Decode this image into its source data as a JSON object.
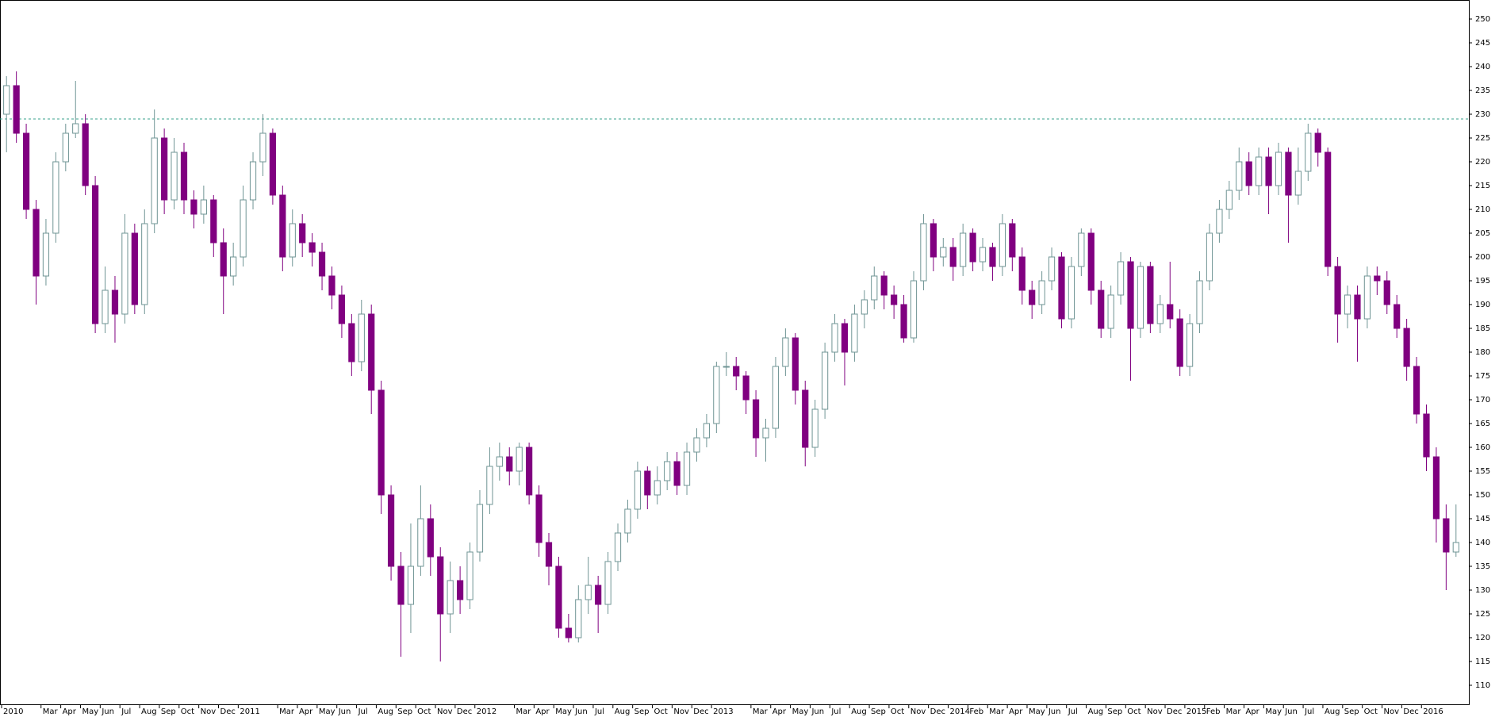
{
  "chart_data": {
    "type": "candlestick",
    "categories": [
      "2010",
      null,
      null,
      null,
      "Mar",
      null,
      "Apr",
      null,
      "May",
      null,
      "Jun",
      null,
      "Jul",
      null,
      "Aug",
      null,
      "Sep",
      null,
      "Oct",
      null,
      "Nov",
      null,
      "Dec",
      null,
      "2011",
      null,
      null,
      null,
      "Mar",
      null,
      "Apr",
      null,
      "May",
      null,
      "Jun",
      null,
      "Jul",
      null,
      "Aug",
      null,
      "Sep",
      null,
      "Oct",
      null,
      "Nov",
      null,
      "Dec",
      null,
      "2012",
      null,
      null,
      null,
      "Mar",
      null,
      "Apr",
      null,
      "May",
      null,
      "Jun",
      null,
      "Jul",
      null,
      "Aug",
      null,
      "Sep",
      null,
      "Oct",
      null,
      "Nov",
      null,
      "Dec",
      null,
      "2013",
      null,
      null,
      null,
      "Mar",
      null,
      "Apr",
      null,
      "May",
      null,
      "Jun",
      null,
      "Jul",
      null,
      "Aug",
      null,
      "Sep",
      null,
      "Oct",
      null,
      "Nov",
      null,
      "Dec",
      null,
      "2014",
      null,
      "Feb",
      null,
      "Mar",
      null,
      "Apr",
      null,
      "May",
      null,
      "Jun",
      null,
      "Jul",
      null,
      "Aug",
      null,
      "Sep",
      null,
      "Oct",
      null,
      "Nov",
      null,
      "Dec",
      null,
      "2015",
      null,
      "Feb",
      null,
      "Mar",
      null,
      "Apr",
      null,
      "May",
      null,
      "Jun",
      null,
      "Jul",
      null,
      "Aug",
      null,
      "Sep",
      null,
      "Oct",
      null,
      "Nov",
      null,
      "Dec",
      null,
      "2016",
      null,
      null,
      null
    ],
    "open": [
      230,
      236,
      226,
      210,
      196,
      205,
      220,
      226,
      228,
      215,
      186,
      193,
      188,
      205,
      190,
      207,
      225,
      212,
      222,
      212,
      209,
      212,
      203,
      196,
      200,
      212,
      220,
      226,
      213,
      200,
      207,
      203,
      201,
      196,
      192,
      186,
      178,
      188,
      172,
      150,
      135,
      127,
      135,
      145,
      137,
      125,
      132,
      128,
      138,
      148,
      156,
      158,
      155,
      160,
      150,
      140,
      135,
      122,
      120,
      128,
      131,
      127,
      136,
      142,
      147,
      155,
      150,
      153,
      157,
      152,
      159,
      162,
      165,
      177,
      177,
      175,
      170,
      162,
      164,
      177,
      183,
      172,
      160,
      168,
      180,
      186,
      180,
      188,
      191,
      196,
      192,
      190,
      183,
      195,
      207,
      200,
      202,
      198,
      205,
      199,
      202,
      198,
      207,
      200,
      193,
      190,
      195,
      200,
      187,
      198,
      205,
      193,
      185,
      192,
      199,
      185,
      198,
      186,
      190,
      187,
      177,
      186,
      195,
      205,
      210,
      214,
      220,
      215,
      221,
      215,
      222,
      213,
      218,
      226,
      222,
      198,
      188,
      192,
      187,
      196,
      195,
      190,
      185,
      177,
      167,
      158,
      145,
      138
    ],
    "high": [
      238,
      239,
      228,
      212,
      208,
      222,
      228,
      237,
      230,
      217,
      198,
      196,
      209,
      207,
      210,
      231,
      227,
      225,
      224,
      214,
      215,
      213,
      206,
      203,
      215,
      222,
      230,
      227,
      215,
      210,
      209,
      205,
      203,
      198,
      194,
      188,
      191,
      190,
      174,
      152,
      138,
      144,
      152,
      148,
      139,
      136,
      135,
      140,
      151,
      160,
      161,
      160,
      161,
      161,
      152,
      142,
      137,
      125,
      131,
      137,
      133,
      138,
      144,
      149,
      157,
      156,
      156,
      159,
      159,
      161,
      164,
      167,
      178,
      180,
      179,
      176,
      172,
      166,
      179,
      185,
      184,
      174,
      170,
      182,
      188,
      187,
      190,
      193,
      198,
      197,
      194,
      192,
      197,
      209,
      208,
      204,
      204,
      207,
      206,
      204,
      203,
      209,
      208,
      202,
      195,
      197,
      202,
      201,
      200,
      206,
      206,
      195,
      194,
      201,
      200,
      199,
      199,
      192,
      199,
      189,
      188,
      197,
      207,
      212,
      216,
      223,
      222,
      223,
      223,
      224,
      223,
      223,
      228,
      227,
      223,
      200,
      194,
      194,
      198,
      198,
      197,
      192,
      187,
      179,
      169,
      160,
      148,
      148
    ],
    "low": [
      222,
      224,
      208,
      190,
      194,
      203,
      218,
      225,
      213,
      184,
      184,
      182,
      186,
      188,
      188,
      205,
      209,
      210,
      209,
      206,
      207,
      200,
      188,
      194,
      198,
      210,
      217,
      211,
      197,
      198,
      200,
      198,
      193,
      189,
      183,
      175,
      176,
      167,
      146,
      132,
      116,
      121,
      133,
      133,
      115,
      121,
      125,
      126,
      136,
      146,
      153,
      152,
      152,
      148,
      137,
      131,
      120,
      119,
      119,
      125,
      121,
      125,
      134,
      140,
      145,
      147,
      148,
      151,
      150,
      150,
      157,
      160,
      163,
      175,
      172,
      167,
      158,
      157,
      162,
      175,
      169,
      156,
      158,
      166,
      178,
      173,
      178,
      185,
      189,
      189,
      187,
      182,
      182,
      193,
      197,
      198,
      195,
      196,
      197,
      197,
      195,
      196,
      197,
      190,
      187,
      188,
      193,
      185,
      185,
      196,
      190,
      183,
      183,
      190,
      174,
      183,
      184,
      184,
      185,
      175,
      175,
      184,
      193,
      203,
      208,
      212,
      213,
      213,
      209,
      213,
      203,
      211,
      216,
      219,
      196,
      182,
      185,
      178,
      185,
      192,
      188,
      183,
      174,
      165,
      155,
      140,
      130,
      137
    ],
    "close": [
      236,
      226,
      210,
      196,
      205,
      220,
      226,
      228,
      215,
      186,
      193,
      188,
      205,
      190,
      207,
      225,
      212,
      222,
      212,
      209,
      212,
      203,
      196,
      200,
      212,
      220,
      226,
      213,
      200,
      207,
      203,
      201,
      196,
      192,
      186,
      178,
      188,
      172,
      150,
      135,
      127,
      135,
      145,
      137,
      125,
      132,
      128,
      138,
      148,
      156,
      158,
      155,
      160,
      150,
      140,
      135,
      122,
      120,
      128,
      131,
      127,
      136,
      142,
      147,
      155,
      150,
      153,
      157,
      152,
      159,
      162,
      165,
      177,
      177,
      175,
      170,
      162,
      164,
      177,
      183,
      172,
      160,
      168,
      180,
      186,
      180,
      188,
      191,
      196,
      192,
      190,
      183,
      195,
      207,
      200,
      202,
      198,
      205,
      199,
      202,
      198,
      207,
      200,
      193,
      190,
      195,
      200,
      187,
      198,
      205,
      193,
      185,
      192,
      199,
      185,
      198,
      186,
      190,
      187,
      177,
      186,
      195,
      205,
      210,
      214,
      220,
      215,
      221,
      215,
      222,
      213,
      218,
      226,
      222,
      198,
      188,
      192,
      187,
      196,
      195,
      190,
      185,
      177,
      167,
      158,
      145,
      138,
      140
    ],
    "ylim": [
      106,
      254
    ],
    "yticks": [
      110,
      115,
      120,
      125,
      130,
      135,
      140,
      145,
      150,
      155,
      160,
      165,
      170,
      175,
      180,
      185,
      190,
      195,
      200,
      205,
      210,
      215,
      220,
      225,
      230,
      235,
      240,
      245,
      250
    ],
    "hline": 229,
    "hline_color": "#3aa08c",
    "up_color": "#ffffff",
    "up_edge": "#6f9494",
    "down_color": "#800080"
  }
}
